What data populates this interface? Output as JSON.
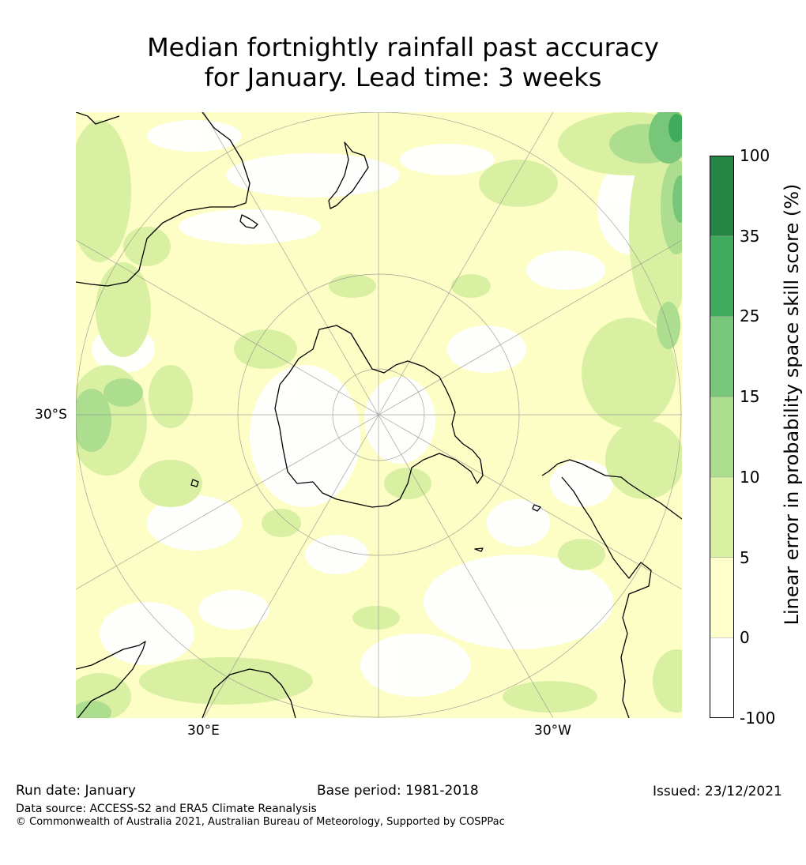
{
  "title": {
    "line1": "Median fortnightly rainfall past accuracy",
    "line2": "for January. Lead time: 3 weeks"
  },
  "map": {
    "lat_label": "30°S",
    "lon_label_left": "30°E",
    "lon_label_right": "30°W",
    "colors": {
      "background": "#fdfec6",
      "ocean_white": "#ffffff",
      "green_light": "#d4edab",
      "green_mid": "#a8dc8c",
      "green_strong": "#74c476",
      "grid": "#8c8c8c",
      "coast": "#000000"
    }
  },
  "colorbar": {
    "title": "Linear error in probability space skill score (%)",
    "tick_labels": [
      "100",
      "35",
      "25",
      "15",
      "10",
      "5",
      "0",
      "-100"
    ],
    "bins": [
      {
        "from": "-100",
        "to": "0",
        "color": "#ffffff"
      },
      {
        "from": "0",
        "to": "5",
        "color": "#ffffcc"
      },
      {
        "from": "5",
        "to": "10",
        "color": "#d9f0a3"
      },
      {
        "from": "10",
        "to": "15",
        "color": "#addd8e"
      },
      {
        "from": "15",
        "to": "25",
        "color": "#78c679"
      },
      {
        "from": "25",
        "to": "35",
        "color": "#41ab5d"
      },
      {
        "from": "35",
        "to": "100",
        "color": "#238443"
      }
    ]
  },
  "footer": {
    "run_date": "Run date: January",
    "base_period": "Base period: 1981-2018",
    "issued": "Issued: 23/12/2021",
    "data_source": "Data source: ACCESS-S2 and ERA5 Climate Reanalysis",
    "copyright": "© Commonwealth of Australia 2021, Australian Bureau of Meteorology, Supported by COSPPac"
  }
}
